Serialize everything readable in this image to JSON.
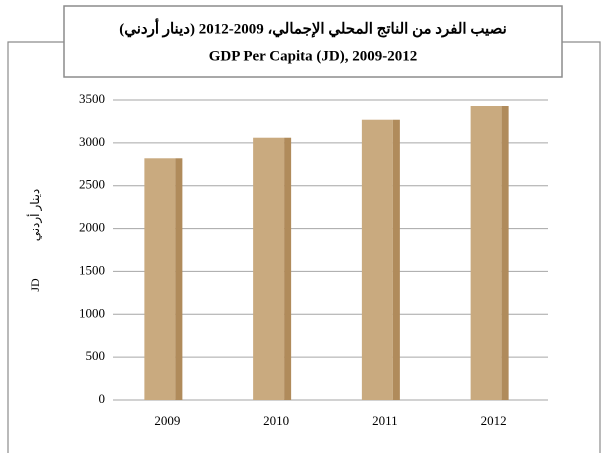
{
  "chart_data": {
    "type": "bar",
    "title": "نصيب الفرد من الناتج المحلي الإجمالي، 2009-2012 (دينار أردني)",
    "subtitle": "GDP Per Capita (JD), 2009-2012",
    "ylabel": [
      "دينار أردني",
      "JD"
    ],
    "categories": [
      "2009",
      "2010",
      "2011",
      "2012"
    ],
    "values": [
      2820,
      3060,
      3270,
      3430
    ],
    "color": "#c9aa7f",
    "ylim": [
      0,
      3500
    ],
    "yticks": [
      0,
      500,
      1000,
      1500,
      2000,
      2500,
      3000,
      3500
    ],
    "grid": true
  }
}
